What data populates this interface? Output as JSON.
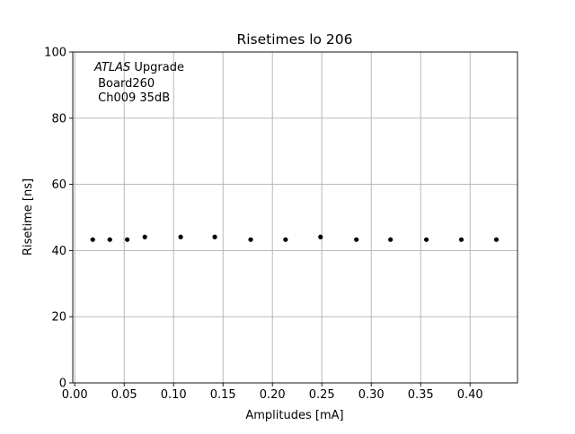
{
  "chart_data": {
    "type": "scatter",
    "title": "Risetimes lo 206",
    "xlabel": "Amplitudes [mA]",
    "ylabel": "Risetime [ns]",
    "xlim": [
      -0.002,
      0.448
    ],
    "ylim": [
      0,
      100
    ],
    "grid": true,
    "x_ticks": [
      0.0,
      0.05,
      0.1,
      0.15,
      0.2,
      0.25,
      0.3,
      0.35,
      0.4
    ],
    "x_tick_labels": [
      "0.00",
      "0.05",
      "0.10",
      "0.15",
      "0.20",
      "0.25",
      "0.30",
      "0.35",
      "0.40"
    ],
    "y_ticks": [
      0,
      20,
      40,
      60,
      80,
      100
    ],
    "y_tick_labels": [
      "0",
      "20",
      "40",
      "60",
      "80",
      "100"
    ],
    "annotation": {
      "italic": "ATLAS",
      "line1_rest": " Upgrade",
      "line2": " Board260",
      "line3": " Ch009 35dB"
    },
    "marker_color": "#000000",
    "grid_color": "#b0b0b0",
    "x": [
      0.0182,
      0.0355,
      0.0531,
      0.0709,
      0.1072,
      0.1417,
      0.178,
      0.2133,
      0.2487,
      0.285,
      0.3195,
      0.3558,
      0.3912,
      0.4266
    ],
    "y": [
      43.3,
      43.3,
      43.3,
      44.1,
      44.1,
      44.1,
      43.3,
      43.3,
      44.1,
      43.3,
      43.3,
      43.3,
      43.3,
      43.3
    ]
  }
}
